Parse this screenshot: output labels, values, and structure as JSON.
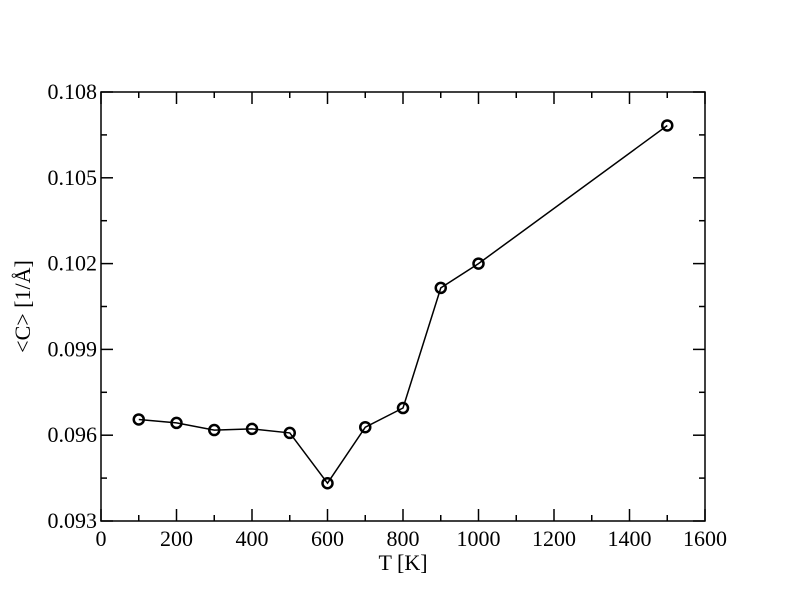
{
  "chart_data": {
    "type": "line",
    "xlabel": "T [K]",
    "ylabel": "<C> [1/Å]",
    "xlim": [
      0,
      1600
    ],
    "ylim": [
      0.093,
      0.108
    ],
    "x_ticks": [
      0,
      200,
      400,
      600,
      800,
      1000,
      1200,
      1400,
      1600
    ],
    "x_tick_labels": [
      "0",
      "200",
      "400",
      "600",
      "800",
      "1000",
      "1200",
      "1400",
      "1600"
    ],
    "y_ticks": [
      0.093,
      0.096,
      0.099,
      0.102,
      0.105,
      0.108
    ],
    "y_tick_labels": [
      "0.093",
      "0.096",
      "0.099",
      "0.102",
      "0.105",
      "0.108"
    ],
    "x_minor_step": 100,
    "y_minor_step": 0.0015,
    "grid": false,
    "series": [
      {
        "marker": "circle",
        "color": "#000000",
        "x": [
          100,
          200,
          300,
          400,
          500,
          600,
          700,
          800,
          900,
          1000,
          1500
        ],
        "y": [
          0.09655,
          0.09643,
          0.09618,
          0.09622,
          0.09608,
          0.09432,
          0.09628,
          0.09695,
          0.10115,
          0.102,
          0.10683
        ]
      }
    ]
  }
}
